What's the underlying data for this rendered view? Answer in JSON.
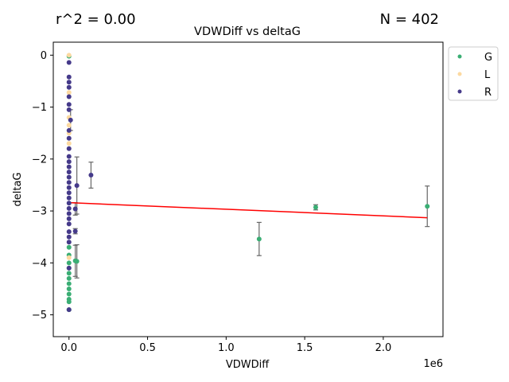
{
  "chart_data": {
    "type": "scatter",
    "title": "VDWDiff vs deltaG",
    "xlabel": "VDWDiff",
    "ylabel": "deltaG",
    "x_offset_label": "1e6",
    "r2_label": "r^2 = 0.00",
    "n_label": "N = 402",
    "xlim": [
      -0.1,
      2.38
    ],
    "ylim": [
      -5.42,
      0.25
    ],
    "x_scale_note": "x values in units of 1e6",
    "x_ticks": [
      0.0,
      0.5,
      1.0,
      1.5,
      2.0
    ],
    "x_tick_labels": [
      "0.0",
      "0.5",
      "1.0",
      "1.5",
      "2.0"
    ],
    "y_ticks": [
      0,
      -1,
      -2,
      -3,
      -4,
      -5
    ],
    "y_tick_labels": [
      "0",
      "−1",
      "−2",
      "−3",
      "−4",
      "−5"
    ],
    "legend": {
      "placement": "outside-top-right",
      "entries": [
        {
          "name": "G",
          "color": "#3aae74"
        },
        {
          "name": "L",
          "color": "#fcd9a0"
        },
        {
          "name": "R",
          "color": "#453a8a"
        }
      ]
    },
    "regression": {
      "color": "#ff0000",
      "x": [
        0.0,
        2.28
      ],
      "y": [
        -2.84,
        -3.13
      ]
    },
    "error_bar_color": "#666666",
    "series": [
      {
        "name": "G",
        "points": [
          {
            "x": 0.0,
            "y": -3.7
          },
          {
            "x": 0.0,
            "y": -3.85
          },
          {
            "x": 0.0,
            "y": -4.0
          },
          {
            "x": 0.0,
            "y": -4.1
          },
          {
            "x": 0.0,
            "y": -4.2
          },
          {
            "x": 0.0,
            "y": -4.3
          },
          {
            "x": 0.0,
            "y": -4.4
          },
          {
            "x": 0.0,
            "y": -4.5
          },
          {
            "x": 0.0,
            "y": -4.6
          },
          {
            "x": 0.0,
            "y": -4.7
          },
          {
            "x": 0.0,
            "y": -4.75
          },
          {
            "x": 0.0,
            "y": -4.9
          },
          {
            "x": 0.0,
            "y": -0.02
          },
          {
            "x": 0.04,
            "y": -3.96,
            "err": 0.3
          },
          {
            "x": 0.05,
            "y": -3.97,
            "err": 0.32
          },
          {
            "x": 1.21,
            "y": -3.54,
            "err": 0.32
          },
          {
            "x": 1.57,
            "y": -2.93,
            "err": 0.05
          },
          {
            "x": 2.28,
            "y": -2.91,
            "err": 0.39
          }
        ]
      },
      {
        "name": "L",
        "points": [
          {
            "x": 0.0,
            "y": -0.0
          },
          {
            "x": 0.0,
            "y": -0.72
          },
          {
            "x": 0.0,
            "y": -1.2
          },
          {
            "x": 0.0,
            "y": -1.35
          },
          {
            "x": 0.0,
            "y": -1.5
          },
          {
            "x": 0.0,
            "y": -1.7
          },
          {
            "x": 0.0,
            "y": -3.9
          }
        ]
      },
      {
        "name": "R",
        "points": [
          {
            "x": 0.0,
            "y": -0.14
          },
          {
            "x": 0.0,
            "y": -0.42
          },
          {
            "x": 0.0,
            "y": -0.52
          },
          {
            "x": 0.0,
            "y": -0.62
          },
          {
            "x": 0.0,
            "y": -0.8
          },
          {
            "x": 0.0,
            "y": -0.95
          },
          {
            "x": 0.0,
            "y": -1.05
          },
          {
            "x": 0.0,
            "y": -1.45
          },
          {
            "x": 0.0,
            "y": -1.6
          },
          {
            "x": 0.0,
            "y": -1.8
          },
          {
            "x": 0.0,
            "y": -1.95
          },
          {
            "x": 0.0,
            "y": -2.05
          },
          {
            "x": 0.0,
            "y": -2.15
          },
          {
            "x": 0.0,
            "y": -2.25
          },
          {
            "x": 0.0,
            "y": -2.35
          },
          {
            "x": 0.0,
            "y": -2.45
          },
          {
            "x": 0.0,
            "y": -2.55
          },
          {
            "x": 0.0,
            "y": -2.65
          },
          {
            "x": 0.0,
            "y": -2.75
          },
          {
            "x": 0.0,
            "y": -2.85
          },
          {
            "x": 0.0,
            "y": -2.95
          },
          {
            "x": 0.0,
            "y": -3.05
          },
          {
            "x": 0.0,
            "y": -3.15
          },
          {
            "x": 0.0,
            "y": -3.25
          },
          {
            "x": 0.0,
            "y": -3.4
          },
          {
            "x": 0.0,
            "y": -3.5
          },
          {
            "x": 0.0,
            "y": -3.6
          },
          {
            "x": 0.0,
            "y": -4.1
          },
          {
            "x": 0.0,
            "y": -4.9
          },
          {
            "x": 0.01,
            "y": -1.25,
            "err": 0.2
          },
          {
            "x": 0.04,
            "y": -2.96,
            "err": 0.12
          },
          {
            "x": 0.04,
            "y": -3.39,
            "err": 0.05
          },
          {
            "x": 0.05,
            "y": -2.51,
            "err": 0.55
          },
          {
            "x": 0.14,
            "y": -2.31,
            "err": 0.25
          }
        ]
      }
    ]
  }
}
